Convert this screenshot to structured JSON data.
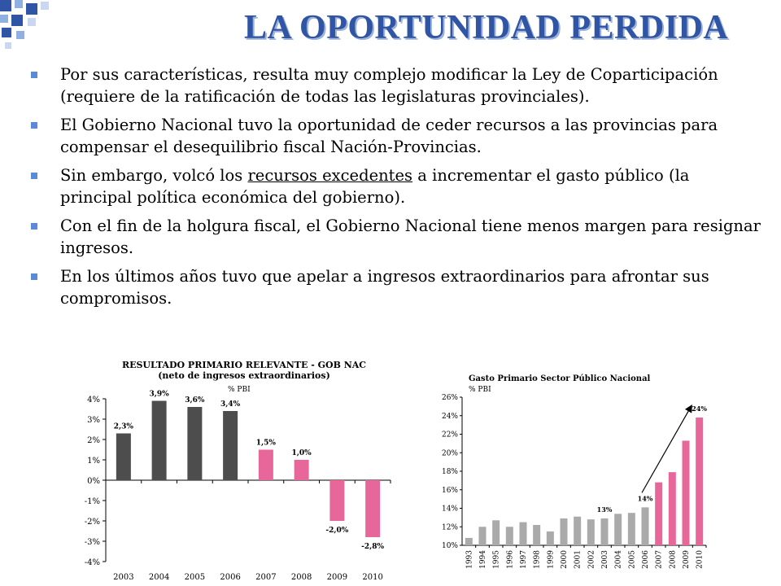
{
  "title": "LA OPORTUNIDAD PERDIDA",
  "bullets": [
    {
      "text": "Por sus características, resulta muy complejo modificar la Ley de Coparticipación (requiere de la ratificación de todas las legislaturas provinciales)."
    },
    {
      "text": "El Gobierno Nacional tuvo la oportunidad de ceder recursos a las provincias para compensar el desequilibrio fiscal Nación-Provincias."
    },
    {
      "pre": "Sin embargo, volcó los ",
      "underlined": "recursos excedentes",
      "post": " a incrementar el gasto público (la principal política económica del gobierno)."
    },
    {
      "text": "Con el fin de la holgura fiscal, el Gobierno Nacional tiene menos margen para resignar ingresos."
    },
    {
      "text": "En los últimos años tuvo que apelar a ingresos extraordinarios para afrontar sus compromisos."
    }
  ],
  "colors": {
    "title": "#2f55a4",
    "bullet": "#5b8ad6",
    "dark_bar": "#4d4d4d",
    "pink_bar": "#e8679a",
    "gray_bar": "#aaaaaa"
  },
  "chart_data": [
    {
      "type": "bar",
      "title": "RESULTADO PRIMARIO RELEVANTE - GOB NAC",
      "subtitle": "(neto de ingresos extraordinarios)",
      "unit": "% PBI",
      "categories": [
        "2003",
        "2004",
        "2005",
        "2006",
        "2007",
        "2008",
        "2009",
        "2010"
      ],
      "values": [
        2.3,
        3.9,
        3.6,
        3.4,
        1.5,
        1.0,
        -2.0,
        -2.8
      ],
      "data_labels": [
        "2,3%",
        "3,9%",
        "3,6%",
        "3,4%",
        "1,5%",
        "1,0%",
        "-2,0%",
        "-2,8%"
      ],
      "bar_colors": [
        "dark",
        "dark",
        "dark",
        "dark",
        "pink",
        "pink",
        "pink",
        "pink"
      ],
      "yticks": [
        "4%",
        "3%",
        "2%",
        "1%",
        "0%",
        "-1%",
        "-2%",
        "-3%",
        "-4%"
      ],
      "ylim": [
        -4,
        4
      ]
    },
    {
      "type": "bar",
      "title": "Gasto Primario Sector Público Nacional",
      "unit": "% PBI",
      "categories": [
        "1993",
        "1994",
        "1995",
        "1996",
        "1997",
        "1998",
        "1999",
        "2000",
        "2001",
        "2002",
        "2003",
        "2004",
        "2005",
        "2006",
        "2007",
        "2008",
        "2009",
        "2010"
      ],
      "values": [
        10.8,
        12.0,
        12.7,
        12.0,
        12.5,
        12.2,
        11.5,
        12.9,
        13.1,
        12.8,
        12.9,
        13.4,
        13.5,
        14.1,
        16.8,
        17.9,
        21.3,
        23.8
      ],
      "bar_colors": [
        "gray",
        "gray",
        "gray",
        "gray",
        "gray",
        "gray",
        "gray",
        "gray",
        "gray",
        "gray",
        "gray",
        "gray",
        "gray",
        "gray",
        "pink",
        "pink",
        "pink",
        "pink"
      ],
      "annotations": [
        {
          "label": "13%",
          "category": "2003"
        },
        {
          "label": "14%",
          "category": "2006"
        },
        {
          "label": "24%",
          "category": "2010"
        }
      ],
      "yticks": [
        "26%",
        "24%",
        "22%",
        "20%",
        "18%",
        "16%",
        "14%",
        "12%",
        "10%"
      ],
      "ylim": [
        10,
        26
      ]
    }
  ]
}
